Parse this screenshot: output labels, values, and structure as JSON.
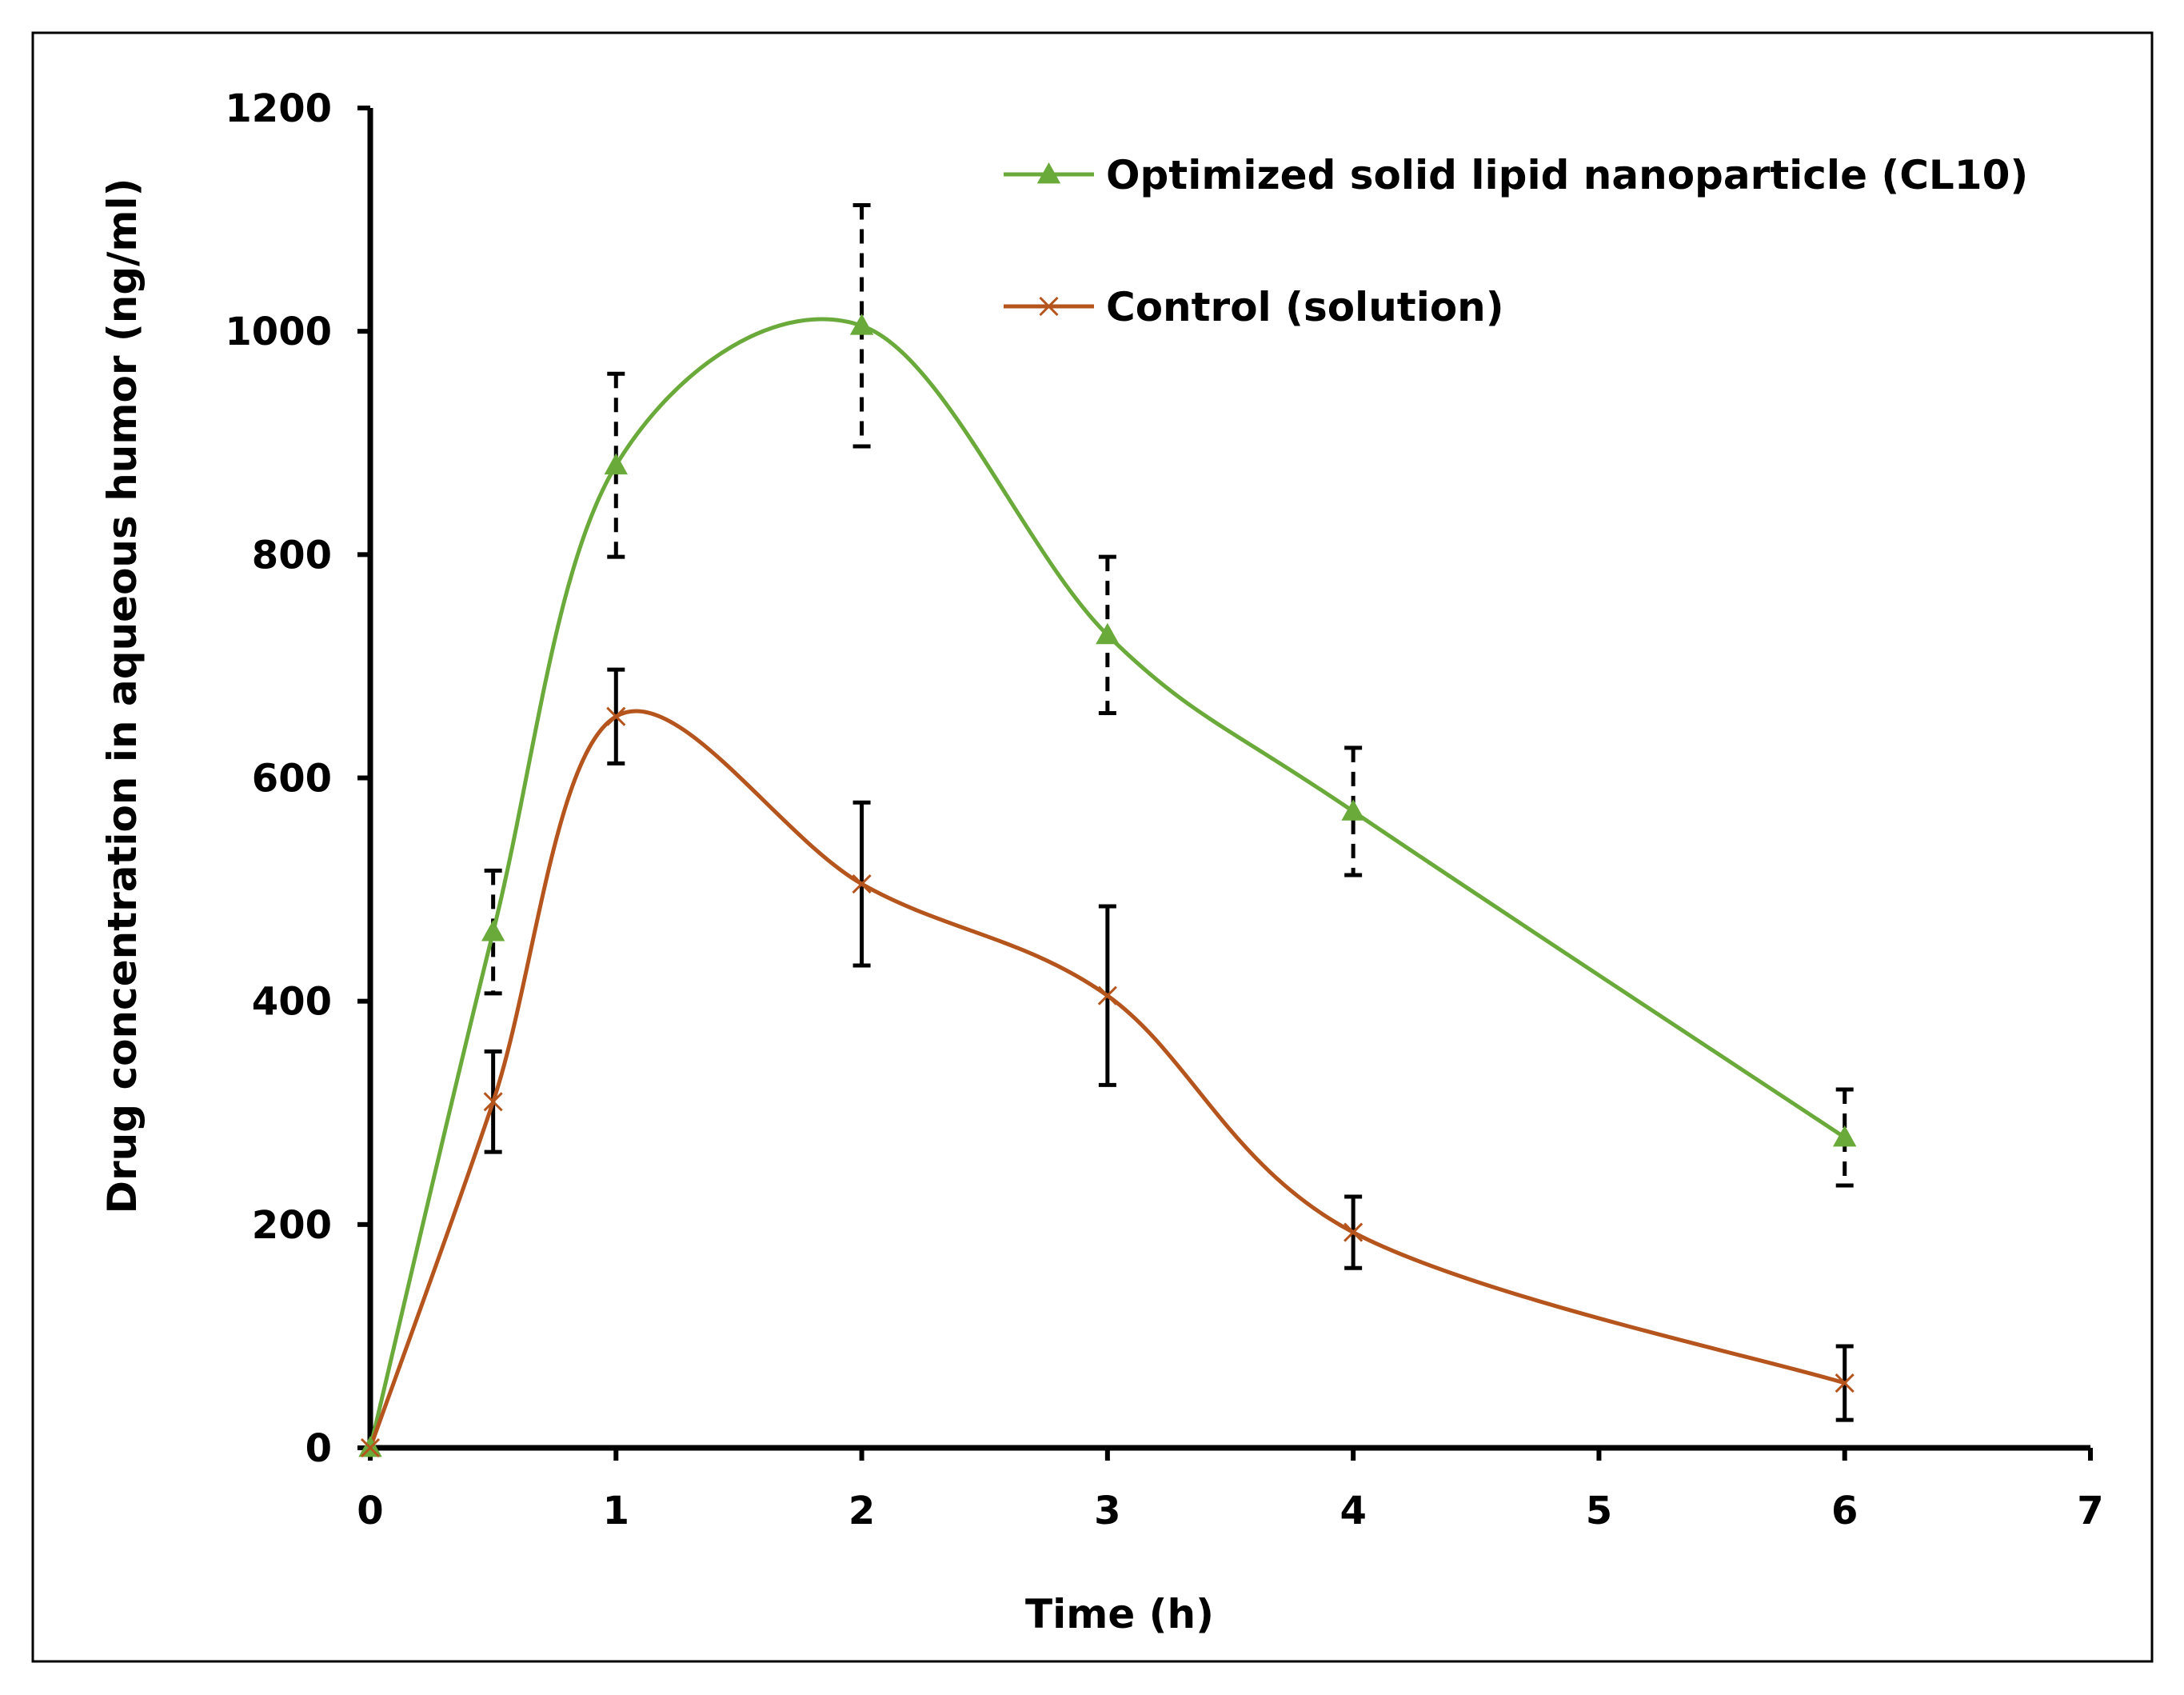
{
  "chart_data": {
    "type": "line",
    "title": "",
    "xlabel": "Time (h)",
    "ylabel": "Drug concentration in aqueous humor (ng/ml)",
    "xlim": [
      0,
      7
    ],
    "ylim": [
      0,
      1200
    ],
    "x_ticks": [
      0,
      1,
      2,
      3,
      4,
      5,
      6,
      7
    ],
    "y_ticks": [
      0,
      200,
      400,
      600,
      800,
      1000,
      1200
    ],
    "grid": false,
    "legend_position": "top-right",
    "series": [
      {
        "name": "Optimized solid lipid nanoparticle (CL10)",
        "color": "#6aaa3a",
        "marker": "triangle",
        "error_style": "dashed",
        "x": [
          0,
          0.5,
          1,
          2,
          3,
          4,
          6
        ],
        "values": [
          0,
          462,
          880,
          1005,
          728,
          570,
          278
        ],
        "errors": [
          0,
          55,
          82,
          108,
          70,
          57,
          43
        ]
      },
      {
        "name": "Control (solution)",
        "color": "#b5541c",
        "marker": "x",
        "error_style": "solid",
        "x": [
          0,
          0.5,
          1,
          2,
          3,
          4,
          6
        ],
        "values": [
          0,
          310,
          655,
          505,
          405,
          193,
          58
        ],
        "errors": [
          0,
          45,
          42,
          73,
          80,
          32,
          33
        ]
      }
    ]
  }
}
